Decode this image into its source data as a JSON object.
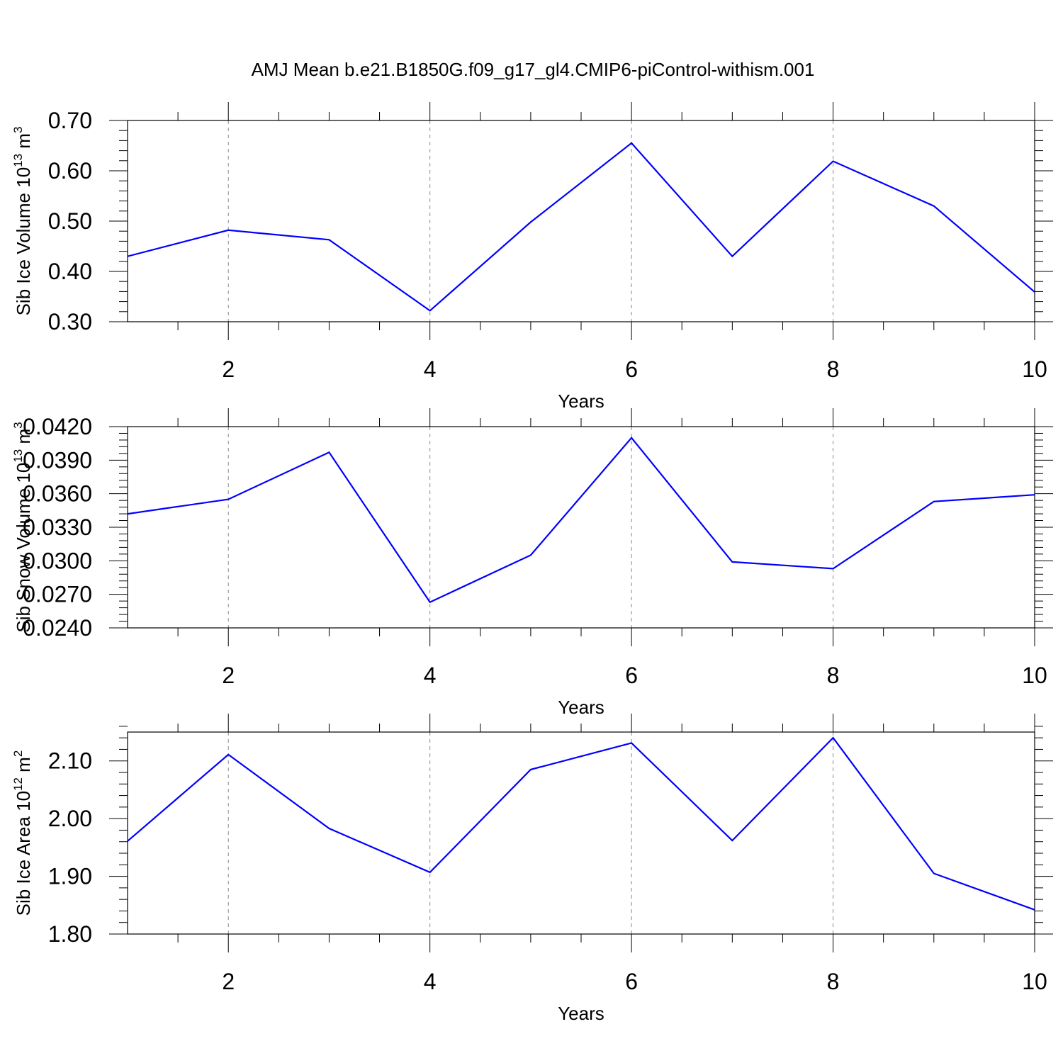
{
  "figure": {
    "title": "AMJ Mean b.e21.B1850G.f09_g17_gl4.CMIP6-piControl-withism.001"
  },
  "style": {
    "line_color": "#0000ff",
    "axis_color": "#000000",
    "grid_color": "#888888"
  },
  "chart_data": [
    {
      "type": "line",
      "title": "",
      "xlabel": "Years",
      "ylabel": {
        "text": "Sib Ice Volume 10",
        "sup": "13",
        "unit": " m",
        "unit_sup": "3"
      },
      "xlim": [
        1,
        10
      ],
      "ylim": [
        0.3,
        0.7
      ],
      "xticks": [
        2,
        4,
        6,
        8,
        10
      ],
      "yticks": [
        0.3,
        0.4,
        0.5,
        0.6,
        0.7
      ],
      "ytick_labels": [
        "0.30",
        "0.40",
        "0.50",
        "0.60",
        "0.70"
      ],
      "grid": "vertical dashed at major x ticks",
      "x": [
        1,
        2,
        3,
        4,
        5,
        6,
        7,
        8,
        9,
        10
      ],
      "series": [
        {
          "values": [
            0.43,
            0.482,
            0.463,
            0.322,
            0.498,
            0.655,
            0.43,
            0.619,
            0.53,
            0.359
          ]
        }
      ]
    },
    {
      "type": "line",
      "title": "",
      "xlabel": "Years",
      "ylabel": {
        "text": "Sib Snow Volume 10",
        "sup": "13",
        "unit": " m",
        "unit_sup": "3"
      },
      "xlim": [
        1,
        10
      ],
      "ylim": [
        0.024,
        0.042
      ],
      "xticks": [
        2,
        4,
        6,
        8,
        10
      ],
      "yticks": [
        0.024,
        0.027,
        0.03,
        0.033,
        0.036,
        0.039,
        0.042
      ],
      "ytick_labels": [
        "0.0240",
        "0.0270",
        "0.0300",
        "0.0330",
        "0.0360",
        "0.0390",
        "0.0420"
      ],
      "grid": "vertical dashed at major x ticks",
      "x": [
        1,
        2,
        3,
        4,
        5,
        6,
        7,
        8,
        9,
        10
      ],
      "series": [
        {
          "values": [
            0.0342,
            0.0355,
            0.0397,
            0.0263,
            0.0305,
            0.041,
            0.0299,
            0.0293,
            0.0353,
            0.0359
          ]
        }
      ]
    },
    {
      "type": "line",
      "title": "",
      "xlabel": "Years",
      "ylabel": {
        "text": "Sib Ice Area 10",
        "sup": "12",
        "unit": " m",
        "unit_sup": "2"
      },
      "xlim": [
        1,
        10
      ],
      "ylim": [
        1.8,
        2.15
      ],
      "xticks": [
        2,
        4,
        6,
        8,
        10
      ],
      "yticks": [
        1.8,
        1.9,
        2.0,
        2.1
      ],
      "ytick_labels": [
        "1.80",
        "1.90",
        "2.00",
        "2.10"
      ],
      "grid": "vertical dashed at major x ticks",
      "x": [
        1,
        2,
        3,
        4,
        5,
        6,
        7,
        8,
        9,
        10
      ],
      "series": [
        {
          "values": [
            1.961,
            2.111,
            1.983,
            1.907,
            2.085,
            2.131,
            1.962,
            2.14,
            1.905,
            1.842
          ]
        }
      ]
    }
  ]
}
